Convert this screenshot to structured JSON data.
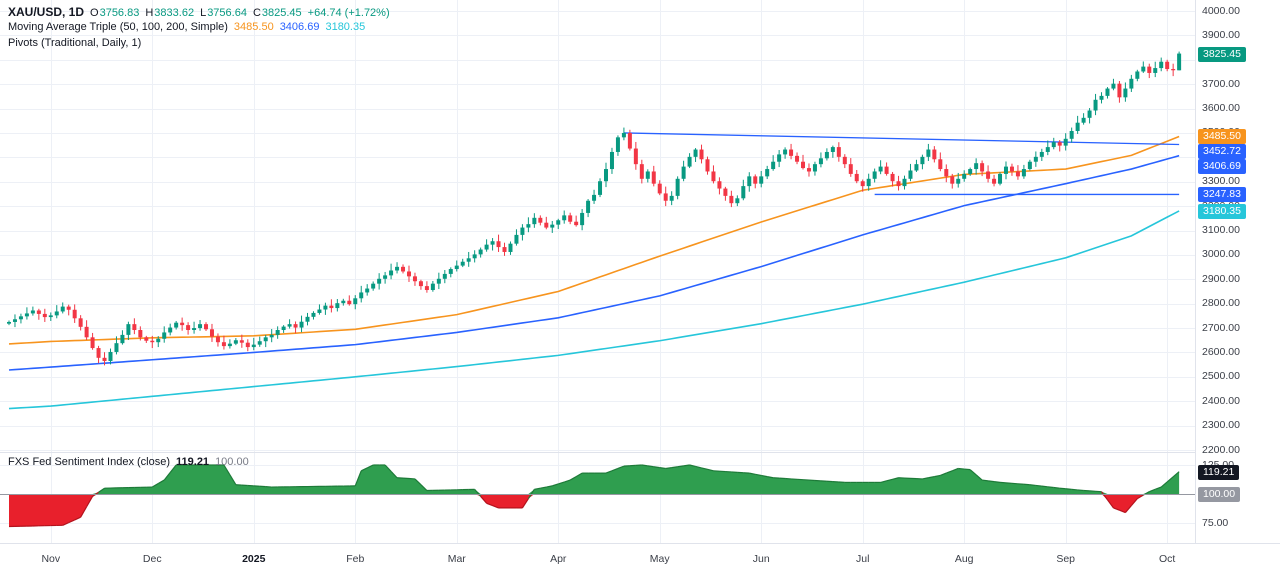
{
  "header": {
    "symbol_row": {
      "title": "XAU/USD, 1D",
      "o_label": "O",
      "o": "3756.83",
      "h_label": "H",
      "h": "3833.62",
      "l_label": "L",
      "l": "3756.64",
      "c_label": "C",
      "c": "3825.45",
      "change": "+64.74 (+1.72%)"
    },
    "ma_row": {
      "title": "Moving Average Triple (50, 100, 200, Simple)",
      "ma50": "3485.50",
      "ma100": "3406.69",
      "ma200": "3180.35"
    },
    "pivots_row": {
      "title": "Pivots (Traditional, Daily, 1)"
    }
  },
  "sub_legend": {
    "title": "FXS Fed Sentiment Index (close)",
    "value": "119.21",
    "baseline": "100.00"
  },
  "price_scale": {
    "badges": [
      {
        "name": "last-price",
        "label": "3825.45",
        "price": 3825.45,
        "bg": "#089981"
      },
      {
        "name": "ma50",
        "label": "3485.50",
        "price": 3485.5,
        "bg": "#f7941e"
      },
      {
        "name": "pivot-upper",
        "label": "3452.72",
        "price": 3452.72,
        "bg": "#2962ff"
      },
      {
        "name": "ma100",
        "label": "3406.69",
        "price": 3406.69,
        "bg": "#2962ff"
      },
      {
        "name": "pivot-lower",
        "label": "3247.83",
        "price": 3247.83,
        "bg": "#2962ff"
      },
      {
        "name": "ma200",
        "label": "3180.35",
        "price": 3180.35,
        "bg": "#26c6da"
      }
    ]
  },
  "sub_scale": {
    "badges": [
      {
        "name": "sentiment-last",
        "label": "119.21",
        "value": 119.21,
        "bg": "#131722"
      },
      {
        "name": "sentiment-baseline",
        "label": "100.00",
        "value": 100,
        "bg": "#9598a1"
      }
    ]
  },
  "chart_data": {
    "type": "candlestick",
    "title": "XAU/USD, 1D",
    "price_axis": {
      "min": 2200,
      "max": 4000,
      "step": 100
    },
    "time_axis": {
      "labels": [
        {
          "label": "Nov",
          "i": 7
        },
        {
          "label": "Dec",
          "i": 24
        },
        {
          "label": "2025",
          "i": 41,
          "bold": true
        },
        {
          "label": "Feb",
          "i": 58
        },
        {
          "label": "Mar",
          "i": 75
        },
        {
          "label": "Apr",
          "i": 92
        },
        {
          "label": "May",
          "i": 109
        },
        {
          "label": "Jun",
          "i": 126
        },
        {
          "label": "Jul",
          "i": 143
        },
        {
          "label": "Aug",
          "i": 160
        },
        {
          "label": "Sep",
          "i": 177
        },
        {
          "label": "Oct",
          "i": 194
        }
      ]
    },
    "colors": {
      "up": "#089981",
      "down": "#f23645",
      "grid": "#edf0f6",
      "separator": "#e0e3eb"
    },
    "candles": {
      "first_open": 2718,
      "closes": [
        2725,
        2736,
        2748,
        2760,
        2772,
        2758,
        2745,
        2752,
        2768,
        2788,
        2775,
        2740,
        2705,
        2662,
        2618,
        2578,
        2565,
        2602,
        2638,
        2672,
        2716,
        2692,
        2662,
        2648,
        2642,
        2656,
        2682,
        2702,
        2722,
        2712,
        2692,
        2700,
        2716,
        2695,
        2665,
        2642,
        2626,
        2636,
        2650,
        2640,
        2622,
        2632,
        2646,
        2662,
        2672,
        2692,
        2706,
        2716,
        2702,
        2726,
        2746,
        2762,
        2776,
        2792,
        2782,
        2802,
        2812,
        2798,
        2822,
        2846,
        2862,
        2882,
        2902,
        2916,
        2936,
        2951,
        2932,
        2912,
        2892,
        2872,
        2856,
        2882,
        2902,
        2922,
        2942,
        2956,
        2972,
        2986,
        3002,
        3022,
        3042,
        3056,
        3032,
        3012,
        3046,
        3082,
        3112,
        3126,
        3152,
        3132,
        3112,
        3124,
        3142,
        3162,
        3136,
        3122,
        3172,
        3222,
        3246,
        3302,
        3352,
        3422,
        3482,
        3500,
        3436,
        3372,
        3312,
        3342,
        3292,
        3252,
        3222,
        3242,
        3312,
        3362,
        3402,
        3432,
        3392,
        3342,
        3302,
        3272,
        3242,
        3212,
        3232,
        3282,
        3322,
        3292,
        3322,
        3352,
        3382,
        3412,
        3432,
        3406,
        3382,
        3356,
        3342,
        3372,
        3396,
        3422,
        3442,
        3402,
        3372,
        3332,
        3302,
        3282,
        3312,
        3342,
        3362,
        3332,
        3302,
        3282,
        3312,
        3346,
        3372,
        3402,
        3432,
        3392,
        3352,
        3322,
        3292,
        3312,
        3332,
        3352,
        3376,
        3342,
        3312,
        3292,
        3332,
        3362,
        3342,
        3322,
        3352,
        3382,
        3402,
        3422,
        3442,
        3462,
        3448,
        3476,
        3508,
        3542,
        3562,
        3592,
        3636,
        3652,
        3682,
        3702,
        3646,
        3682,
        3722,
        3752,
        3772,
        3746,
        3766,
        3792,
        3762,
        3757,
        3825.45
      ],
      "last_ohlc": [
        3756.83,
        3833.62,
        3756.64,
        3825.45
      ]
    },
    "overlays": {
      "ma50": {
        "name": "SMA 50",
        "color": "#f7941e",
        "last": 3485.5,
        "points": [
          [
            0,
            2635
          ],
          [
            7,
            2645
          ],
          [
            24,
            2660
          ],
          [
            41,
            2668
          ],
          [
            58,
            2695
          ],
          [
            75,
            2755
          ],
          [
            92,
            2850
          ],
          [
            109,
            2995
          ],
          [
            126,
            3135
          ],
          [
            143,
            3265
          ],
          [
            160,
            3330
          ],
          [
            177,
            3352
          ],
          [
            188,
            3408
          ],
          [
            196,
            3485.5
          ]
        ]
      },
      "ma100": {
        "name": "SMA 100",
        "color": "#2962ff",
        "last": 3406.69,
        "points": [
          [
            0,
            2528
          ],
          [
            7,
            2540
          ],
          [
            24,
            2570
          ],
          [
            41,
            2600
          ],
          [
            58,
            2632
          ],
          [
            75,
            2682
          ],
          [
            92,
            2742
          ],
          [
            109,
            2832
          ],
          [
            126,
            2952
          ],
          [
            143,
            3082
          ],
          [
            160,
            3202
          ],
          [
            177,
            3292
          ],
          [
            188,
            3352
          ],
          [
            196,
            3406.69
          ]
        ]
      },
      "ma200": {
        "name": "SMA 200",
        "color": "#26c6da",
        "last": 3180.35,
        "points": [
          [
            0,
            2370
          ],
          [
            7,
            2380
          ],
          [
            24,
            2420
          ],
          [
            41,
            2460
          ],
          [
            58,
            2500
          ],
          [
            75,
            2542
          ],
          [
            92,
            2588
          ],
          [
            109,
            2648
          ],
          [
            126,
            2718
          ],
          [
            143,
            2798
          ],
          [
            160,
            2888
          ],
          [
            177,
            2988
          ],
          [
            188,
            3078
          ],
          [
            196,
            3180.35
          ]
        ]
      },
      "pivot_lines": [
        {
          "label": "3452.72",
          "color": "#2962ff",
          "from": [
            103,
            3500
          ],
          "to": [
            196,
            3452.72
          ]
        },
        {
          "label": "3247.83",
          "color": "#2962ff",
          "from": [
            145,
            3247.83
          ],
          "to": [
            196,
            3247.83
          ]
        }
      ]
    },
    "sentiment": {
      "name": "FXS Fed Sentiment Index",
      "type": "area",
      "baseline": 100,
      "last": 119.21,
      "axis": {
        "ticks": [
          125,
          100,
          75
        ]
      },
      "colors": {
        "up": "#2f9e4f",
        "up_line": "#1d7a38",
        "down": "#e8202c",
        "down_line": "#b3121c"
      },
      "points": [
        [
          0,
          72
        ],
        [
          9,
          73
        ],
        [
          12,
          80
        ],
        [
          14,
          98
        ],
        [
          16,
          105
        ],
        [
          24,
          106
        ],
        [
          26,
          112
        ],
        [
          28,
          125
        ],
        [
          36,
          125
        ],
        [
          38,
          108
        ],
        [
          44,
          106
        ],
        [
          58,
          107
        ],
        [
          59,
          120
        ],
        [
          61,
          125
        ],
        [
          63,
          125
        ],
        [
          65,
          114
        ],
        [
          68,
          113
        ],
        [
          70,
          103
        ],
        [
          78,
          104
        ],
        [
          80,
          92
        ],
        [
          82,
          88
        ],
        [
          86,
          88
        ],
        [
          88,
          104
        ],
        [
          91,
          107
        ],
        [
          94,
          112
        ],
        [
          96,
          118
        ],
        [
          100,
          118
        ],
        [
          103,
          124
        ],
        [
          106,
          125
        ],
        [
          110,
          122
        ],
        [
          114,
          125
        ],
        [
          118,
          120
        ],
        [
          124,
          118
        ],
        [
          128,
          114
        ],
        [
          134,
          112
        ],
        [
          140,
          110
        ],
        [
          146,
          110
        ],
        [
          149,
          114
        ],
        [
          153,
          113
        ],
        [
          156,
          116
        ],
        [
          159,
          122
        ],
        [
          161,
          121
        ],
        [
          163,
          112
        ],
        [
          166,
          110
        ],
        [
          171,
          108
        ],
        [
          176,
          105
        ],
        [
          180,
          103
        ],
        [
          183,
          102
        ],
        [
          185,
          88
        ],
        [
          187,
          84
        ],
        [
          189,
          96
        ],
        [
          191,
          102
        ],
        [
          193,
          106
        ],
        [
          196,
          119.21
        ]
      ]
    }
  }
}
